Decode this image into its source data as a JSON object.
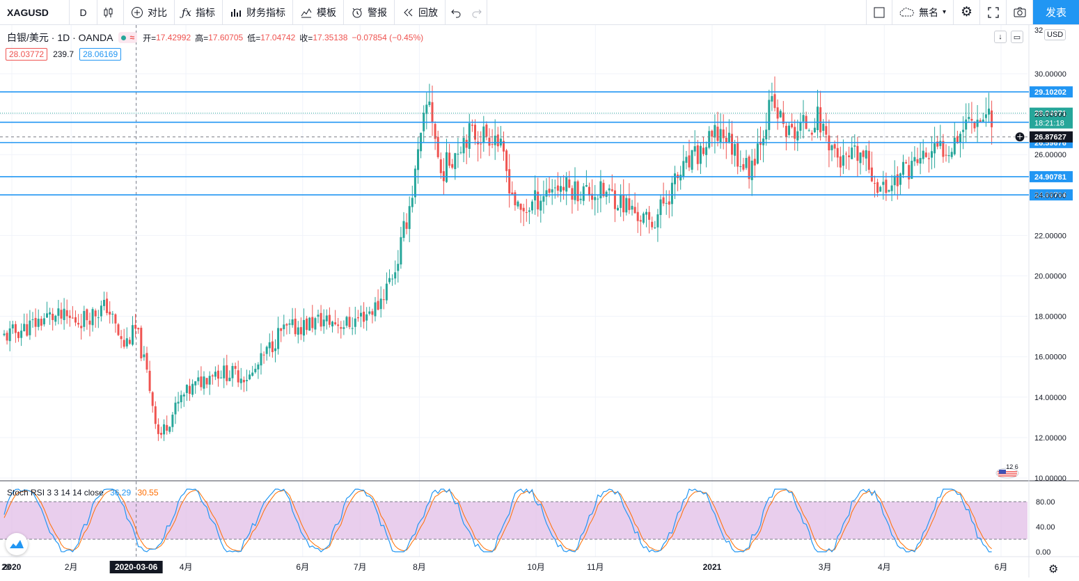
{
  "toolbar": {
    "symbol": "XAGUSD",
    "interval": "D",
    "compare": "对比",
    "indicators": "指标",
    "financials": "财务指标",
    "templates": "模板",
    "alert": "警报",
    "replay": "回放",
    "layout_name": "無名",
    "publish": "发表"
  },
  "legend": {
    "title": "白银/美元 · 1D · OANDA",
    "open_label": "开=",
    "open": "17.42992",
    "high_label": "高=",
    "high": "17.60705",
    "low_label": "低=",
    "low": "17.04742",
    "close_label": "收=",
    "close": "17.35138",
    "change": "−0.07854 (−0.45%)",
    "bid": "28.03772",
    "spread": "239.7",
    "ask": "28.06169"
  },
  "stoch_rsi": {
    "name": "Stoch RSI 3 3 14 14 close",
    "k": "36.29",
    "d": "30.55"
  },
  "price_scale": {
    "currency": "USD",
    "ticks": [
      "32",
      "30.00000",
      "28.00000",
      "26.00000",
      "24.00000",
      "22.00000",
      "20.00000",
      "18.00000",
      "16.00000",
      "14.00000",
      "12.00000",
      "10.00000"
    ],
    "tick_values": [
      32,
      30,
      28,
      26,
      24,
      22,
      20,
      18,
      16,
      14,
      12,
      10
    ],
    "last_price": "28.04971",
    "countdown": "18:21:18",
    "crosshair_price": "26.87627",
    "flag_label": "12 6"
  },
  "rsi_scale": {
    "ticks": [
      "80.00",
      "40.00",
      "0.00"
    ],
    "tick_values": [
      80,
      40,
      0
    ]
  },
  "time_axis": {
    "labels": [
      "28",
      "2020",
      "2月",
      "2020-03-06",
      "4月",
      "6月",
      "7月",
      "8月",
      "10月",
      "11月",
      "2021",
      "3月",
      "4月",
      "6月"
    ]
  },
  "horizontal_lines": [
    {
      "label": "29.10202",
      "value": 29.10202
    },
    {
      "label": "27.60000",
      "value": 27.6
    },
    {
      "label": "26.59676",
      "value": 26.59676
    },
    {
      "label": "24.90781",
      "value": 24.90781
    },
    {
      "label": "24.00704",
      "value": 24.00704
    }
  ],
  "colors": {
    "up": "#26a69a",
    "down": "#ef5350",
    "hline": "#2196f3",
    "k_line": "#2196f3",
    "d_line": "#ff6d00",
    "rsi_band": "#e1bee7",
    "accent": "#2196f3"
  },
  "chart_data": {
    "type": "candlestick",
    "symbol": "XAGUSD",
    "interval": "1D",
    "y_range": [
      10,
      32
    ],
    "price_path": [
      {
        "x": "2019-12-28",
        "y": 17.0
      },
      {
        "x": "2020-01-10",
        "y": 17.5
      },
      {
        "x": "2020-01-20",
        "y": 18.0
      },
      {
        "x": "2020-02-05",
        "y": 17.8
      },
      {
        "x": "2020-02-20",
        "y": 18.5
      },
      {
        "x": "2020-02-28",
        "y": 16.5
      },
      {
        "x": "2020-03-06",
        "y": 17.35
      },
      {
        "x": "2020-03-12",
        "y": 15.0
      },
      {
        "x": "2020-03-18",
        "y": 12.0
      },
      {
        "x": "2020-03-30",
        "y": 14.0
      },
      {
        "x": "2020-04-15",
        "y": 15.3
      },
      {
        "x": "2020-05-05",
        "y": 15.0
      },
      {
        "x": "2020-05-20",
        "y": 17.2
      },
      {
        "x": "2020-06-10",
        "y": 17.8
      },
      {
        "x": "2020-06-25",
        "y": 17.6
      },
      {
        "x": "2020-07-10",
        "y": 18.5
      },
      {
        "x": "2020-07-20",
        "y": 20.5
      },
      {
        "x": "2020-07-28",
        "y": 24.0
      },
      {
        "x": "2020-08-06",
        "y": 29.0
      },
      {
        "x": "2020-08-12",
        "y": 25.0
      },
      {
        "x": "2020-08-25",
        "y": 27.0
      },
      {
        "x": "2020-09-10",
        "y": 27.0
      },
      {
        "x": "2020-09-22",
        "y": 23.0
      },
      {
        "x": "2020-10-10",
        "y": 24.5
      },
      {
        "x": "2020-10-25",
        "y": 24.2
      },
      {
        "x": "2020-11-10",
        "y": 24.0
      },
      {
        "x": "2020-11-30",
        "y": 22.5
      },
      {
        "x": "2020-12-15",
        "y": 25.0
      },
      {
        "x": "2021-01-06",
        "y": 27.2
      },
      {
        "x": "2021-01-20",
        "y": 25.2
      },
      {
        "x": "2021-02-01",
        "y": 28.5
      },
      {
        "x": "2021-02-10",
        "y": 27.0
      },
      {
        "x": "2021-02-25",
        "y": 27.8
      },
      {
        "x": "2021-03-10",
        "y": 25.5
      },
      {
        "x": "2021-03-20",
        "y": 26.0
      },
      {
        "x": "2021-03-31",
        "y": 24.2
      },
      {
        "x": "2021-04-15",
        "y": 25.5
      },
      {
        "x": "2021-05-05",
        "y": 26.5
      },
      {
        "x": "2021-05-15",
        "y": 27.8
      },
      {
        "x": "2021-05-28",
        "y": 28.05
      }
    ],
    "stoch_rsi_range": [
      0,
      100
    ],
    "stoch_rsi_bands": [
      80,
      20
    ]
  }
}
